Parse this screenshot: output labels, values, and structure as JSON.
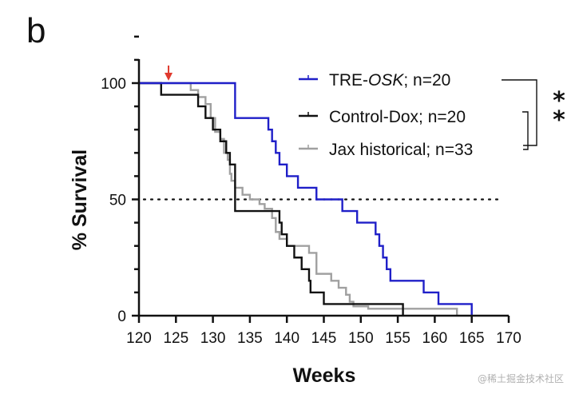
{
  "panel_label": "b",
  "watermark": "@稀土掘金技术社区",
  "chart_data": {
    "type": "line",
    "subtype": "kaplan-meier-step",
    "title": "",
    "xlabel": "Weeks",
    "ylabel": "% Survival",
    "xlim": [
      120,
      170
    ],
    "ylim": [
      0,
      100
    ],
    "xticks": [
      120,
      125,
      130,
      135,
      140,
      145,
      150,
      155,
      160,
      165,
      170
    ],
    "yticks": [
      0,
      50,
      100
    ],
    "y_minor_step": 10,
    "grid": false,
    "reference_line": {
      "y": 50,
      "style": "dotted"
    },
    "annotation_arrow": {
      "x": 124,
      "color": "#e03a2e",
      "meaning": "treatment start"
    },
    "legend_position": "top-right",
    "significance": {
      "label": "**",
      "comparison": "TRE-OSK vs Control-Dox / Jax historical"
    },
    "series": [
      {
        "name": "TRE-OSK; n=20",
        "name_parts": [
          "TRE-",
          "OSK",
          "; n=20"
        ],
        "color": "#1f1fc8",
        "steps": [
          [
            120,
            100
          ],
          [
            133,
            85
          ],
          [
            137.5,
            80
          ],
          [
            138,
            75
          ],
          [
            138.5,
            70
          ],
          [
            139,
            65
          ],
          [
            140,
            60
          ],
          [
            141.5,
            55
          ],
          [
            144,
            50
          ],
          [
            147.5,
            45
          ],
          [
            149.5,
            40
          ],
          [
            152,
            35
          ],
          [
            152.5,
            30
          ],
          [
            153,
            25
          ],
          [
            153.5,
            20
          ],
          [
            154,
            15
          ],
          [
            158.5,
            10
          ],
          [
            160.5,
            5
          ],
          [
            165,
            0
          ]
        ]
      },
      {
        "name": "Control-Dox; n=20",
        "color": "#111111",
        "steps": [
          [
            120,
            100
          ],
          [
            123,
            95
          ],
          [
            128,
            90
          ],
          [
            129,
            85
          ],
          [
            130,
            80
          ],
          [
            131,
            75
          ],
          [
            131.8,
            70
          ],
          [
            132.3,
            65
          ],
          [
            133,
            45
          ],
          [
            139,
            40
          ],
          [
            139.3,
            35
          ],
          [
            140,
            30
          ],
          [
            141,
            25
          ],
          [
            142,
            20
          ],
          [
            143,
            15
          ],
          [
            143.2,
            10
          ],
          [
            145,
            5
          ],
          [
            155.7,
            0
          ]
        ]
      },
      {
        "name": "Jax historical; n=33",
        "color": "#a0a0a0",
        "steps": [
          [
            120,
            100
          ],
          [
            127,
            97
          ],
          [
            128,
            94
          ],
          [
            129,
            91
          ],
          [
            129.7,
            85
          ],
          [
            130.3,
            79
          ],
          [
            131,
            76
          ],
          [
            131.5,
            70
          ],
          [
            132,
            67
          ],
          [
            132.3,
            61
          ],
          [
            132.5,
            58
          ],
          [
            133,
            55
          ],
          [
            134,
            52
          ],
          [
            135,
            50
          ],
          [
            136.3,
            48
          ],
          [
            137,
            46
          ],
          [
            138,
            42
          ],
          [
            138.5,
            36
          ],
          [
            139,
            33
          ],
          [
            140,
            30
          ],
          [
            142,
            30
          ],
          [
            143,
            27
          ],
          [
            144,
            18
          ],
          [
            146,
            15
          ],
          [
            147,
            12
          ],
          [
            148,
            9
          ],
          [
            148.5,
            6
          ],
          [
            149,
            4
          ],
          [
            151,
            3
          ],
          [
            163,
            0
          ]
        ]
      }
    ]
  }
}
